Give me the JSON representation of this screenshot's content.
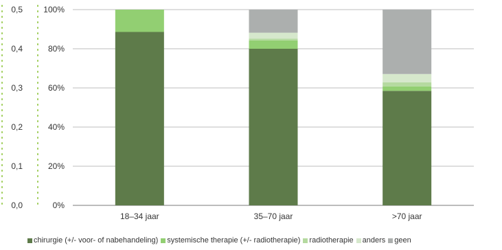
{
  "chart_data": {
    "type": "bar",
    "stacked": true,
    "categories": [
      "18–34 jaar",
      "35–70 jaar",
      ">70 jaar"
    ],
    "y_axis": {
      "ticks": [
        "0%",
        "20%",
        "40%",
        "60%",
        "80%",
        "100%"
      ],
      "ylim": [
        0,
        100
      ]
    },
    "secondary_y_axis": {
      "ticks": [
        "0,0",
        "0,1",
        "0,2",
        "0,3",
        "0,4",
        "0,5"
      ],
      "ylim": [
        0,
        0.5
      ]
    },
    "grid": true,
    "legend_position": "bottom",
    "series": [
      {
        "name": "chirurgie (+/- voor- of nabehandeling)",
        "color": "#5e7b4a",
        "values": [
          88.6,
          80.0,
          58.5
        ]
      },
      {
        "name": "systemische therapie (+/- radiotherapie)",
        "color": "#92cf72",
        "values": [
          11.4,
          4.3,
          2.3
        ]
      },
      {
        "name": "radiotherapie",
        "color": "#b5daa0",
        "values": [
          0,
          0.9,
          2.0
        ]
      },
      {
        "name": "anders",
        "color": "#d6e8cc",
        "values": [
          0,
          3.0,
          4.3
        ]
      },
      {
        "name": "geen",
        "color": "#acafae",
        "values": [
          0,
          11.8,
          32.9
        ]
      }
    ]
  }
}
